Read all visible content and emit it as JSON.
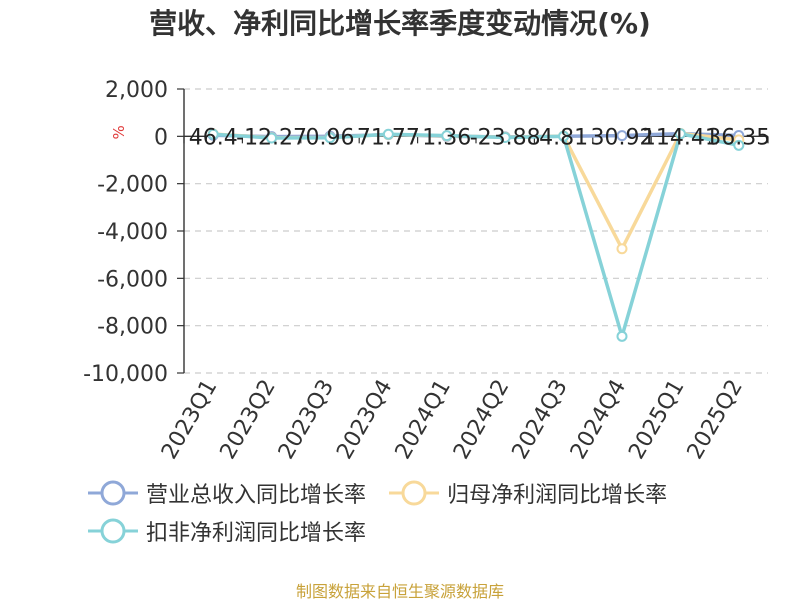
{
  "chart_data": {
    "type": "line",
    "title": "营收、净利同比增长率季度变动情况(%)",
    "ylabel": "%",
    "xlabel": "",
    "categories": [
      "2023Q1",
      "2023Q2",
      "2023Q3",
      "2023Q4",
      "2024Q1",
      "2024Q2",
      "2024Q3",
      "2024Q4",
      "2025Q1",
      "2025Q2"
    ],
    "yticks": [
      "2,000",
      "0",
      "-2,000",
      "-4,000",
      "-6,000",
      "-8,000",
      "-10,000"
    ],
    "ylim": [
      -10000,
      2000
    ],
    "grid": "horizontal dashed",
    "legend_position": "bottom",
    "data_labels": [
      "46.4",
      "-12.27",
      "0.96",
      "71.77",
      "1.36",
      "-23.88",
      "4.81",
      "30.92",
      "114.41",
      "36.35"
    ],
    "series": [
      {
        "name": "营业总收入同比增长率",
        "color": "#8fa8d8",
        "values": [
          46.4,
          -12.27,
          0.96,
          71.77,
          1.36,
          -23.88,
          4.81,
          30.92,
          114.41,
          36.35
        ]
      },
      {
        "name": "归母净利润同比增长率",
        "color": "#f8d99a",
        "values": [
          100,
          -60,
          -50,
          80,
          20,
          -40,
          10,
          -4750,
          120,
          -150
        ]
      },
      {
        "name": "扣非净利润同比增长率",
        "color": "#86d2d8",
        "values": [
          90,
          -70,
          -60,
          90,
          30,
          -50,
          5,
          -8450,
          110,
          -380
        ]
      }
    ]
  },
  "source": "制图数据来自恒生聚源数据库"
}
